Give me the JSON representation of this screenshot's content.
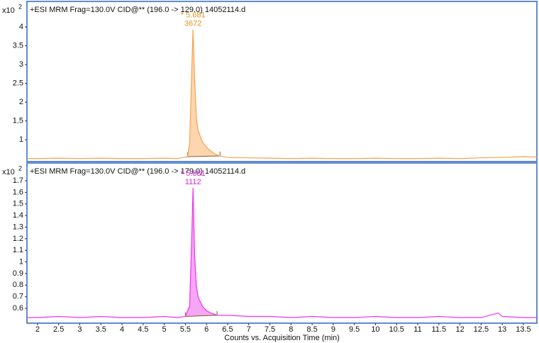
{
  "chart_data": [
    {
      "type": "line",
      "title": "+ESI MRM Frag=130.0V CID@** (196.0 -> 129.0) 14052114.d",
      "y_multiplier": "x10",
      "y_exponent": "2",
      "color": "#f5a34a",
      "fill_color": "#fdd6b0",
      "label_color": "#e8901e",
      "peak_label": "* 5.681",
      "peak_area": "3672",
      "integration_range": [
        5.55,
        6.32
      ],
      "x": [
        1.75,
        2,
        2.5,
        3,
        3.5,
        4,
        4.5,
        5,
        5.3,
        5.55,
        5.6,
        5.65,
        5.681,
        5.72,
        5.76,
        5.8,
        5.9,
        6.0,
        6.1,
        6.2,
        6.32,
        6.5,
        7,
        7.5,
        8,
        8.5,
        9,
        9.5,
        10,
        10.5,
        11,
        11.5,
        12,
        12.5,
        13,
        13.5,
        13.82
      ],
      "values": [
        0.5,
        0.5,
        0.51,
        0.5,
        0.51,
        0.5,
        0.5,
        0.51,
        0.5,
        0.55,
        0.9,
        2.8,
        3.93,
        2.6,
        1.6,
        1.25,
        0.95,
        0.8,
        0.7,
        0.62,
        0.57,
        0.53,
        0.52,
        0.51,
        0.5,
        0.51,
        0.5,
        0.5,
        0.51,
        0.5,
        0.5,
        0.51,
        0.5,
        0.52,
        0.53,
        0.55,
        0.54
      ],
      "xlim": [
        1.75,
        13.82
      ],
      "ylim": [
        0.42,
        4.68
      ],
      "yticks": [
        1,
        1.5,
        2,
        2.5,
        3,
        3.5,
        4
      ]
    },
    {
      "type": "line",
      "title": "+ESI MRM Frag=130.0V CID@** (196.0 -> 179.0) 14052114.d",
      "y_multiplier": "x10",
      "y_exponent": "2",
      "color": "#ee33ee",
      "fill_color": "#f5a6f5",
      "label_color": "#dd22dd",
      "peak_label": "* 5.681",
      "peak_area": "1112",
      "integration_range": [
        5.5,
        6.25
      ],
      "x": [
        1.75,
        2,
        2.5,
        3,
        3.5,
        4,
        4.5,
        5,
        5.3,
        5.5,
        5.6,
        5.65,
        5.681,
        5.72,
        5.76,
        5.8,
        5.9,
        6.0,
        6.1,
        6.25,
        6.5,
        7,
        7.5,
        8,
        8.5,
        9,
        9.5,
        10,
        10.5,
        11,
        11.5,
        12,
        12.5,
        12.9,
        13,
        13.5,
        13.82
      ],
      "values": [
        0.52,
        0.52,
        0.53,
        0.52,
        0.53,
        0.52,
        0.52,
        0.53,
        0.52,
        0.53,
        0.62,
        1.2,
        1.64,
        1.05,
        0.8,
        0.7,
        0.62,
        0.58,
        0.56,
        0.54,
        0.54,
        0.53,
        0.53,
        0.52,
        0.53,
        0.52,
        0.52,
        0.53,
        0.52,
        0.52,
        0.53,
        0.52,
        0.52,
        0.56,
        0.53,
        0.52,
        0.52
      ],
      "xlim": [
        1.75,
        13.82
      ],
      "ylim": [
        0.472,
        1.853
      ],
      "yticks": [
        0.6,
        0.7,
        0.8,
        0.9,
        1,
        1.1,
        1.2,
        1.3,
        1.4,
        1.5,
        1.6,
        1.7
      ],
      "xticks": [
        2,
        2.5,
        3,
        3.5,
        4,
        4.5,
        5,
        5.5,
        6,
        6.5,
        7,
        7.5,
        8,
        8.5,
        9,
        9.5,
        10,
        10.5,
        11,
        11.5,
        12,
        12.5,
        13,
        13.5
      ],
      "xlabel": "Counts vs. Acquisition Time (min)"
    }
  ]
}
